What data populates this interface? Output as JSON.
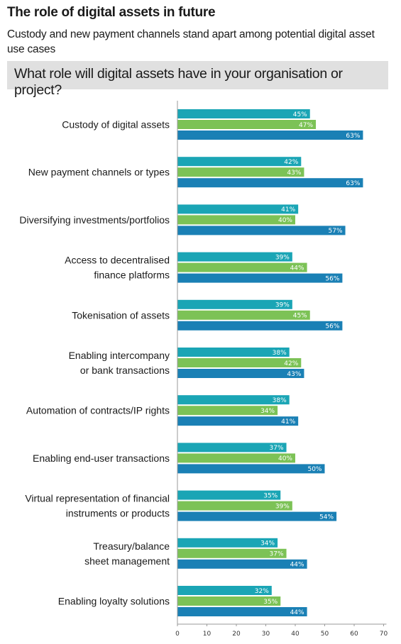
{
  "header": {
    "title": "The role of digital assets in future",
    "subtitle": "Custody and new payment channels stand apart among potential digital asset use cases",
    "question": "What role will digital assets have in your organisation or project?"
  },
  "colors": {
    "series1": "#1aa5b5",
    "series2": "#7cc256",
    "series3": "#1a80b5",
    "axis": "#999999"
  },
  "chart_data": {
    "type": "bar",
    "orientation": "horizontal",
    "categories": [
      [
        "Custody of digital assets"
      ],
      [
        "New payment channels or types"
      ],
      [
        "Diversifying investments/portfolios"
      ],
      [
        "Access to decentralised",
        "finance platforms"
      ],
      [
        "Tokenisation of assets"
      ],
      [
        "Enabling intercompany",
        "or bank transactions"
      ],
      [
        "Automation of contracts/IP rights"
      ],
      [
        "Enabling end-user transactions"
      ],
      [
        "Virtual representation of financial",
        "instruments or products"
      ],
      [
        "Treasury/balance",
        "sheet management"
      ],
      [
        "Enabling loyalty solutions"
      ]
    ],
    "series": [
      {
        "values": [
          45,
          42,
          41,
          39,
          39,
          38,
          38,
          37,
          35,
          34,
          32
        ]
      },
      {
        "values": [
          47,
          43,
          40,
          44,
          45,
          42,
          34,
          40,
          39,
          37,
          35
        ]
      },
      {
        "values": [
          63,
          63,
          57,
          56,
          56,
          43,
          41,
          50,
          54,
          44,
          44
        ]
      }
    ],
    "value_suffix": "%",
    "xlim": [
      0,
      70
    ],
    "xticks": [
      0,
      10,
      20,
      30,
      40,
      50,
      60,
      70
    ],
    "grid": false,
    "legend": "none"
  }
}
